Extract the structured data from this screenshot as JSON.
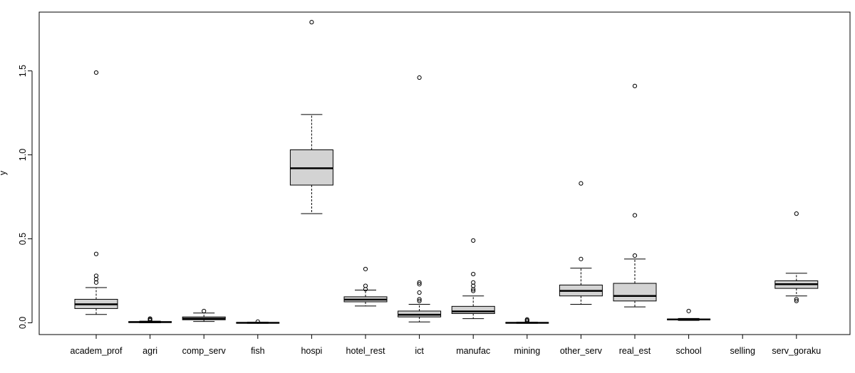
{
  "chart_data": {
    "type": "boxplot",
    "title": "",
    "xlabel": "",
    "ylabel": "y",
    "ylim": [
      -0.07,
      1.85
    ],
    "yticks": [
      0.0,
      0.5,
      1.0,
      1.5
    ],
    "ytick_labels": [
      "0.0",
      "0.5",
      "1.0",
      "1.5"
    ],
    "grid": false,
    "categories": [
      "academ_prof",
      "agri",
      "comp_serv",
      "fish",
      "hospi",
      "hotel_rest",
      "ict",
      "manufac",
      "mining",
      "other_serv",
      "real_est",
      "school",
      "selling",
      "serv_goraku"
    ],
    "boxes": [
      {
        "category": "academ_prof",
        "whisker_low": 0.05,
        "q1": 0.085,
        "median": 0.11,
        "q3": 0.14,
        "whisker_high": 0.21,
        "outliers": [
          0.24,
          0.26,
          0.28,
          0.41,
          1.49
        ]
      },
      {
        "category": "agri",
        "whisker_low": 0.0,
        "q1": 0.002,
        "median": 0.004,
        "q3": 0.007,
        "whisker_high": 0.01,
        "outliers": [
          0.015,
          0.02,
          0.025
        ]
      },
      {
        "category": "comp_serv",
        "whisker_low": 0.008,
        "q1": 0.018,
        "median": 0.025,
        "q3": 0.035,
        "whisker_high": 0.058,
        "outliers": [
          0.07
        ]
      },
      {
        "category": "fish",
        "whisker_low": -0.003,
        "q1": -0.001,
        "median": 0.0,
        "q3": 0.002,
        "whisker_high": 0.004,
        "outliers": [
          0.007
        ]
      },
      {
        "category": "hospi",
        "whisker_low": 0.65,
        "q1": 0.82,
        "median": 0.92,
        "q3": 1.03,
        "whisker_high": 1.24,
        "outliers": [
          1.79
        ]
      },
      {
        "category": "hotel_rest",
        "whisker_low": 0.1,
        "q1": 0.125,
        "median": 0.138,
        "q3": 0.155,
        "whisker_high": 0.195,
        "outliers": [
          0.2,
          0.22,
          0.32
        ]
      },
      {
        "category": "ict",
        "whisker_low": 0.005,
        "q1": 0.035,
        "median": 0.048,
        "q3": 0.07,
        "whisker_high": 0.11,
        "outliers": [
          0.13,
          0.14,
          0.18,
          0.23,
          0.24,
          1.46
        ]
      },
      {
        "category": "manufac",
        "whisker_low": 0.025,
        "q1": 0.055,
        "median": 0.068,
        "q3": 0.098,
        "whisker_high": 0.16,
        "outliers": [
          0.19,
          0.2,
          0.22,
          0.24,
          0.29,
          0.49
        ]
      },
      {
        "category": "mining",
        "whisker_low": -0.003,
        "q1": -0.001,
        "median": 0.0,
        "q3": 0.002,
        "whisker_high": 0.004,
        "outliers": [
          0.008,
          0.015,
          0.02
        ]
      },
      {
        "category": "other_serv",
        "whisker_low": 0.11,
        "q1": 0.16,
        "median": 0.19,
        "q3": 0.225,
        "whisker_high": 0.325,
        "outliers": [
          0.38,
          0.83
        ]
      },
      {
        "category": "real_est",
        "whisker_low": 0.095,
        "q1": 0.13,
        "median": 0.16,
        "q3": 0.235,
        "whisker_high": 0.38,
        "outliers": [
          0.4,
          0.64,
          1.41
        ]
      },
      {
        "category": "school",
        "whisker_low": 0.014,
        "q1": 0.017,
        "median": 0.02,
        "q3": 0.023,
        "whisker_high": 0.026,
        "outliers": [
          0.07
        ]
      },
      {
        "category": "selling",
        "whisker_low": null,
        "q1": null,
        "median": null,
        "q3": null,
        "whisker_high": null,
        "outliers": []
      },
      {
        "category": "serv_goraku",
        "whisker_low": 0.16,
        "q1": 0.205,
        "median": 0.23,
        "q3": 0.25,
        "whisker_high": 0.295,
        "outliers": [
          0.13,
          0.14,
          0.65
        ]
      }
    ],
    "colors": {
      "box_fill": "#d3d3d3",
      "stroke": "#000000",
      "background": "#ffffff"
    }
  }
}
